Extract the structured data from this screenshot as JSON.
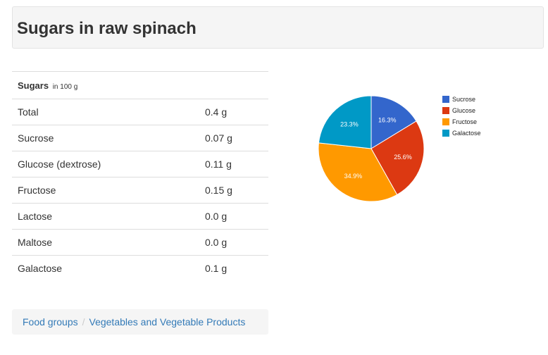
{
  "page": {
    "title": "Sugars in raw spinach"
  },
  "table": {
    "header_label": "Sugars",
    "header_unit": "in 100 g",
    "rows": [
      {
        "label": "Total",
        "value": "0.4 g"
      },
      {
        "label": "Sucrose",
        "value": "0.07 g"
      },
      {
        "label": "Glucose (dextrose)",
        "value": "0.11 g"
      },
      {
        "label": "Fructose",
        "value": "0.15 g"
      },
      {
        "label": "Lactose",
        "value": "0.0 g"
      },
      {
        "label": "Maltose",
        "value": "0.0 g"
      },
      {
        "label": "Galactose",
        "value": "0.1 g"
      }
    ]
  },
  "breadcrumb": {
    "separator": "/",
    "items": [
      "Food groups",
      "Vegetables and Vegetable Products"
    ]
  },
  "chart_data": {
    "type": "pie",
    "labels": [
      "Sucrose",
      "Glucose",
      "Fructose",
      "Galactose"
    ],
    "values": [
      16.3,
      25.6,
      34.9,
      23.3
    ],
    "value_labels": [
      "16.3%",
      "25.6%",
      "34.9%",
      "23.3%"
    ],
    "colors": [
      "#3366cc",
      "#dc3912",
      "#ff9900",
      "#0099c6"
    ],
    "legend_position": "right"
  }
}
